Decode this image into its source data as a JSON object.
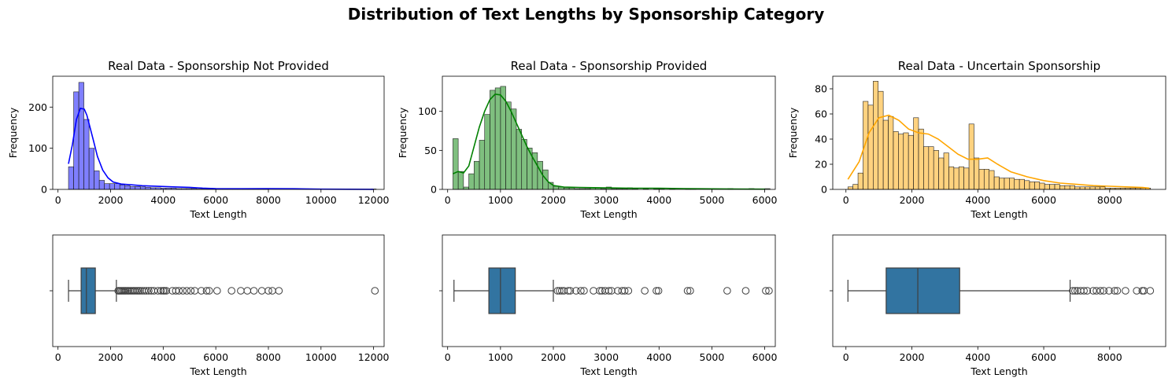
{
  "figure": {
    "title": "Distribution of Text Lengths by Sponsorship Category"
  },
  "chart_data": [
    {
      "type": "bar",
      "subtype": "histogram_kde",
      "title": "Real Data - Sponsorship Not Provided",
      "xlabel": "Text Length",
      "ylabel": "Frequency",
      "color": "#0000ff",
      "xlim": [
        -200,
        12400
      ],
      "ylim": [
        0,
        275
      ],
      "xticks": [
        0,
        2000,
        4000,
        6000,
        8000,
        10000,
        12000
      ],
      "yticks": [
        0,
        100,
        200
      ],
      "bin_start": 400,
      "bin_width": 195,
      "counts": [
        55,
        237,
        260,
        170,
        100,
        45,
        22,
        14,
        14,
        14,
        11,
        9,
        7,
        7,
        6,
        5,
        4,
        4,
        3,
        3,
        3,
        2,
        2,
        2,
        2,
        1,
        1,
        1,
        1,
        1,
        1,
        1,
        1,
        1,
        1,
        1,
        1,
        1,
        1,
        0,
        0,
        0,
        0,
        0,
        0,
        0,
        0,
        0,
        0,
        0,
        0,
        0,
        0,
        0,
        0,
        0,
        0,
        0,
        0,
        1
      ],
      "kde": {
        "x": [
          400,
          550,
          700,
          850,
          1000,
          1100,
          1200,
          1350,
          1500,
          1700,
          1900,
          2100,
          2400,
          2800,
          3200,
          3600,
          4000,
          4500,
          5000,
          5500,
          6000,
          7000,
          8000,
          9000,
          10000,
          11000,
          12000
        ],
        "y": [
          62,
          110,
          170,
          197,
          195,
          180,
          155,
          118,
          80,
          47,
          28,
          18,
          13,
          11,
          9,
          8,
          7,
          6,
          5,
          3,
          2,
          1.5,
          2,
          1.5,
          0.5,
          0.3,
          0.2
        ]
      }
    },
    {
      "type": "bar",
      "subtype": "histogram_kde",
      "title": "Real Data - Sponsorship Provided",
      "xlabel": "Text Length",
      "ylabel": "Frequency",
      "color": "#008000",
      "xlim": [
        -100,
        6200
      ],
      "ylim": [
        0,
        145
      ],
      "xticks": [
        0,
        1000,
        2000,
        3000,
        4000,
        5000,
        6000
      ],
      "yticks": [
        0,
        50,
        100
      ],
      "bin_start": 100,
      "bin_width": 100,
      "counts": [
        65,
        23,
        3,
        20,
        36,
        63,
        96,
        127,
        130,
        132,
        112,
        103,
        77,
        64,
        53,
        47,
        36,
        25,
        9,
        4,
        3,
        2,
        2,
        1,
        1,
        1,
        2,
        2,
        1,
        3,
        1,
        1,
        1,
        2,
        1,
        0,
        1,
        0,
        1,
        1,
        0,
        1,
        0,
        0,
        1,
        1,
        0,
        0,
        0,
        0,
        0,
        0,
        1,
        0,
        0,
        0,
        1,
        0,
        0,
        1
      ],
      "kde": {
        "x": [
          100,
          200,
          300,
          400,
          500,
          600,
          700,
          800,
          900,
          1000,
          1100,
          1200,
          1300,
          1400,
          1500,
          1600,
          1700,
          1800,
          1900,
          2000,
          2200,
          2500,
          3000,
          3500,
          4000,
          4500,
          5000,
          5500,
          6000
        ],
        "y": [
          20,
          23,
          21,
          30,
          55,
          80,
          100,
          115,
          122,
          121,
          113,
          100,
          85,
          70,
          55,
          42,
          30,
          18,
          10,
          5,
          3,
          2.5,
          2,
          1.5,
          1.5,
          1,
          0.7,
          0.5,
          0.3
        ]
      }
    },
    {
      "type": "bar",
      "subtype": "histogram_kde",
      "title": "Real Data - Uncertain Sponsorship",
      "xlabel": "Text Length",
      "ylabel": "Frequency",
      "color": "#ffa500",
      "xlim": [
        -400,
        9700
      ],
      "ylim": [
        0,
        90
      ],
      "xticks": [
        0,
        2000,
        4000,
        6000,
        8000
      ],
      "yticks": [
        0,
        20,
        40,
        60,
        80
      ],
      "bin_start": 60,
      "bin_width": 153,
      "counts": [
        2,
        4,
        13,
        70,
        67,
        86,
        78,
        55,
        58,
        46,
        44,
        45,
        43,
        57,
        48,
        34,
        34,
        31,
        25,
        29,
        18,
        17,
        18,
        17,
        52,
        25,
        16,
        16,
        15,
        10,
        9,
        9,
        9,
        8,
        8,
        7,
        6,
        6,
        5,
        4,
        4,
        4,
        3,
        3,
        3,
        2,
        2,
        2,
        2,
        2,
        2,
        1,
        1,
        1,
        1,
        1,
        1,
        1,
        1,
        1
      ],
      "kde": {
        "x": [
          60,
          400,
          700,
          1000,
          1300,
          1600,
          1900,
          2200,
          2500,
          2800,
          3100,
          3400,
          3700,
          4000,
          4300,
          4600,
          5000,
          5500,
          6000,
          6500,
          7000,
          7500,
          8000,
          8500,
          9000,
          9200
        ],
        "y": [
          8,
          22,
          45,
          57,
          59,
          55,
          48,
          45,
          44,
          40,
          34,
          28,
          24,
          24,
          25,
          20,
          14,
          10,
          7,
          5,
          4,
          3,
          2.5,
          2,
          1.5,
          1
        ]
      }
    },
    {
      "type": "boxplot",
      "xlabel": "Text Length",
      "color": "#3274a1",
      "xlim": [
        -200,
        12400
      ],
      "xticks": [
        0,
        2000,
        4000,
        6000,
        8000,
        10000,
        12000
      ],
      "whisker_low": 400,
      "q1": 880,
      "median": 1080,
      "q3": 1420,
      "whisker_high": 2220,
      "outliers": [
        2290,
        2330,
        2380,
        2430,
        2480,
        2530,
        2580,
        2640,
        2690,
        2750,
        2810,
        2870,
        2930,
        3000,
        3060,
        3120,
        3200,
        3280,
        3360,
        3450,
        3550,
        3650,
        3800,
        3920,
        4000,
        4050,
        4120,
        4350,
        4480,
        4600,
        4750,
        4900,
        5050,
        5200,
        5450,
        5650,
        5750,
        6050,
        6600,
        6950,
        7200,
        7450,
        7750,
        8000,
        8150,
        8400,
        12050
      ]
    },
    {
      "type": "boxplot",
      "xlabel": "Text Length",
      "color": "#3274a1",
      "xlim": [
        -100,
        6200
      ],
      "xticks": [
        0,
        1000,
        2000,
        3000,
        4000,
        5000,
        6000
      ],
      "whisker_low": 120,
      "q1": 780,
      "median": 1000,
      "q3": 1280,
      "whisker_high": 2000,
      "outliers": [
        2080,
        2120,
        2160,
        2200,
        2280,
        2320,
        2430,
        2520,
        2580,
        2760,
        2880,
        2920,
        2980,
        3050,
        3100,
        3220,
        3300,
        3350,
        3420,
        3730,
        3950,
        3990,
        4540,
        4590,
        5290,
        5640,
        6020,
        6080
      ]
    },
    {
      "type": "boxplot",
      "xlabel": "Text Length",
      "color": "#3274a1",
      "xlim": [
        -400,
        9700
      ],
      "xticks": [
        0,
        2000,
        4000,
        6000,
        8000
      ],
      "whisker_low": 60,
      "q1": 1220,
      "median": 2180,
      "q3": 3450,
      "whisker_high": 6800,
      "outliers": [
        6880,
        6950,
        7020,
        7120,
        7220,
        7320,
        7500,
        7600,
        7720,
        7820,
        7980,
        8150,
        8230,
        8480,
        8820,
        8990,
        9040,
        9230
      ]
    }
  ]
}
